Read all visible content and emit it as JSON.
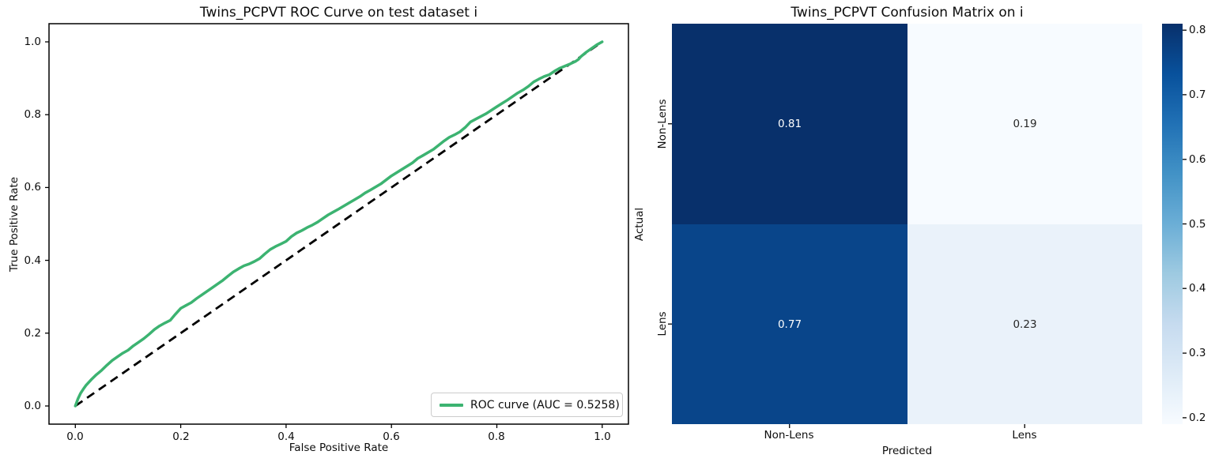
{
  "figure": {
    "background": "#ffffff"
  },
  "chart_data": [
    {
      "type": "line",
      "title": "Twins_PCPVT ROC Curve on test dataset i",
      "xlabel": "False Positive Rate",
      "ylabel": "True Positive Rate",
      "xlim": [
        -0.05,
        1.05
      ],
      "ylim": [
        -0.05,
        1.05
      ],
      "grid": false,
      "x_tick_labels": [
        "0.0",
        "0.2",
        "0.4",
        "0.6",
        "0.8",
        "1.0"
      ],
      "y_tick_labels_top_to_bottom": [
        "1.0",
        "0.8",
        "0.6",
        "0.4",
        "0.2",
        "0.0"
      ],
      "legend": {
        "position": "lower right",
        "entries": [
          {
            "label": "ROC curve (AUC = 0.5258)",
            "color": "#3cb371"
          }
        ]
      },
      "auc": 0.5258,
      "series": [
        {
          "name": "ROC curve",
          "color": "#3cb371",
          "style": "solid",
          "points": [
            [
              0.0,
              0.0
            ],
            [
              0.005,
              0.02
            ],
            [
              0.01,
              0.035
            ],
            [
              0.015,
              0.046
            ],
            [
              0.02,
              0.056
            ],
            [
              0.03,
              0.072
            ],
            [
              0.04,
              0.086
            ],
            [
              0.05,
              0.098
            ],
            [
              0.06,
              0.112
            ],
            [
              0.07,
              0.125
            ],
            [
              0.08,
              0.135
            ],
            [
              0.09,
              0.145
            ],
            [
              0.1,
              0.153
            ],
            [
              0.11,
              0.165
            ],
            [
              0.12,
              0.175
            ],
            [
              0.13,
              0.185
            ],
            [
              0.14,
              0.197
            ],
            [
              0.15,
              0.21
            ],
            [
              0.16,
              0.22
            ],
            [
              0.17,
              0.228
            ],
            [
              0.18,
              0.235
            ],
            [
              0.19,
              0.252
            ],
            [
              0.2,
              0.268
            ],
            [
              0.21,
              0.276
            ],
            [
              0.22,
              0.284
            ],
            [
              0.23,
              0.295
            ],
            [
              0.24,
              0.305
            ],
            [
              0.25,
              0.315
            ],
            [
              0.26,
              0.325
            ],
            [
              0.27,
              0.335
            ],
            [
              0.28,
              0.345
            ],
            [
              0.29,
              0.357
            ],
            [
              0.3,
              0.368
            ],
            [
              0.31,
              0.377
            ],
            [
              0.32,
              0.385
            ],
            [
              0.33,
              0.39
            ],
            [
              0.34,
              0.397
            ],
            [
              0.35,
              0.405
            ],
            [
              0.36,
              0.418
            ],
            [
              0.37,
              0.43
            ],
            [
              0.38,
              0.438
            ],
            [
              0.39,
              0.445
            ],
            [
              0.4,
              0.452
            ],
            [
              0.41,
              0.465
            ],
            [
              0.42,
              0.475
            ],
            [
              0.43,
              0.482
            ],
            [
              0.44,
              0.49
            ],
            [
              0.45,
              0.497
            ],
            [
              0.46,
              0.505
            ],
            [
              0.47,
              0.515
            ],
            [
              0.48,
              0.525
            ],
            [
              0.49,
              0.533
            ],
            [
              0.5,
              0.541
            ],
            [
              0.52,
              0.558
            ],
            [
              0.54,
              0.575
            ],
            [
              0.55,
              0.585
            ],
            [
              0.56,
              0.593
            ],
            [
              0.58,
              0.61
            ],
            [
              0.6,
              0.632
            ],
            [
              0.62,
              0.65
            ],
            [
              0.64,
              0.668
            ],
            [
              0.65,
              0.68
            ],
            [
              0.66,
              0.688
            ],
            [
              0.68,
              0.705
            ],
            [
              0.7,
              0.728
            ],
            [
              0.71,
              0.738
            ],
            [
              0.72,
              0.745
            ],
            [
              0.73,
              0.753
            ],
            [
              0.74,
              0.765
            ],
            [
              0.75,
              0.78
            ],
            [
              0.76,
              0.788
            ],
            [
              0.78,
              0.803
            ],
            [
              0.8,
              0.822
            ],
            [
              0.82,
              0.84
            ],
            [
              0.84,
              0.86
            ],
            [
              0.85,
              0.868
            ],
            [
              0.86,
              0.878
            ],
            [
              0.87,
              0.89
            ],
            [
              0.88,
              0.898
            ],
            [
              0.89,
              0.905
            ],
            [
              0.9,
              0.91
            ],
            [
              0.91,
              0.92
            ],
            [
              0.92,
              0.928
            ],
            [
              0.93,
              0.934
            ],
            [
              0.94,
              0.94
            ],
            [
              0.95,
              0.947
            ],
            [
              0.955,
              0.952
            ],
            [
              0.96,
              0.96
            ],
            [
              0.97,
              0.972
            ],
            [
              0.98,
              0.982
            ],
            [
              0.99,
              0.992
            ],
            [
              1.0,
              1.0
            ]
          ]
        },
        {
          "name": "chance diagonal",
          "color": "#000000",
          "style": "dashed",
          "points": [
            [
              0.0,
              0.0
            ],
            [
              1.0,
              1.0
            ]
          ]
        }
      ]
    },
    {
      "type": "heatmap",
      "title": "Twins_PCPVT Confusion Matrix on i",
      "xlabel": "Predicted",
      "ylabel": "Actual",
      "x_tick_labels": [
        "Non-Lens",
        "Lens"
      ],
      "y_tick_labels": [
        "Non-Lens",
        "Lens"
      ],
      "values": [
        [
          0.81,
          0.19
        ],
        [
          0.77,
          0.23
        ]
      ],
      "rows": [
        {
          "label": "Non-Lens",
          "cells": [
            {
              "value": "0.81",
              "bg": "#08306b",
              "fg": "#ffffff"
            },
            {
              "value": "0.19",
              "bg": "#f7fbff",
              "fg": "#262626"
            }
          ]
        },
        {
          "label": "Lens",
          "cells": [
            {
              "value": "0.77",
              "bg": "#09458a",
              "fg": "#ffffff"
            },
            {
              "value": "0.23",
              "bg": "#eaf2fa",
              "fg": "#262626"
            }
          ]
        }
      ],
      "colorbar": {
        "vmin": 0.19,
        "vmax": 0.81,
        "tick_labels_top_to_bottom": [
          "0.8",
          "0.7",
          "0.6",
          "0.5",
          "0.4",
          "0.3",
          "0.2"
        ],
        "colormap": "Blues",
        "gradient_stops_bottom_to_top": [
          "#f7fbff",
          "#deebf7",
          "#c6dbef",
          "#9ecae1",
          "#6baed6",
          "#4292c6",
          "#2171b5",
          "#08519c",
          "#08306b"
        ]
      }
    }
  ]
}
